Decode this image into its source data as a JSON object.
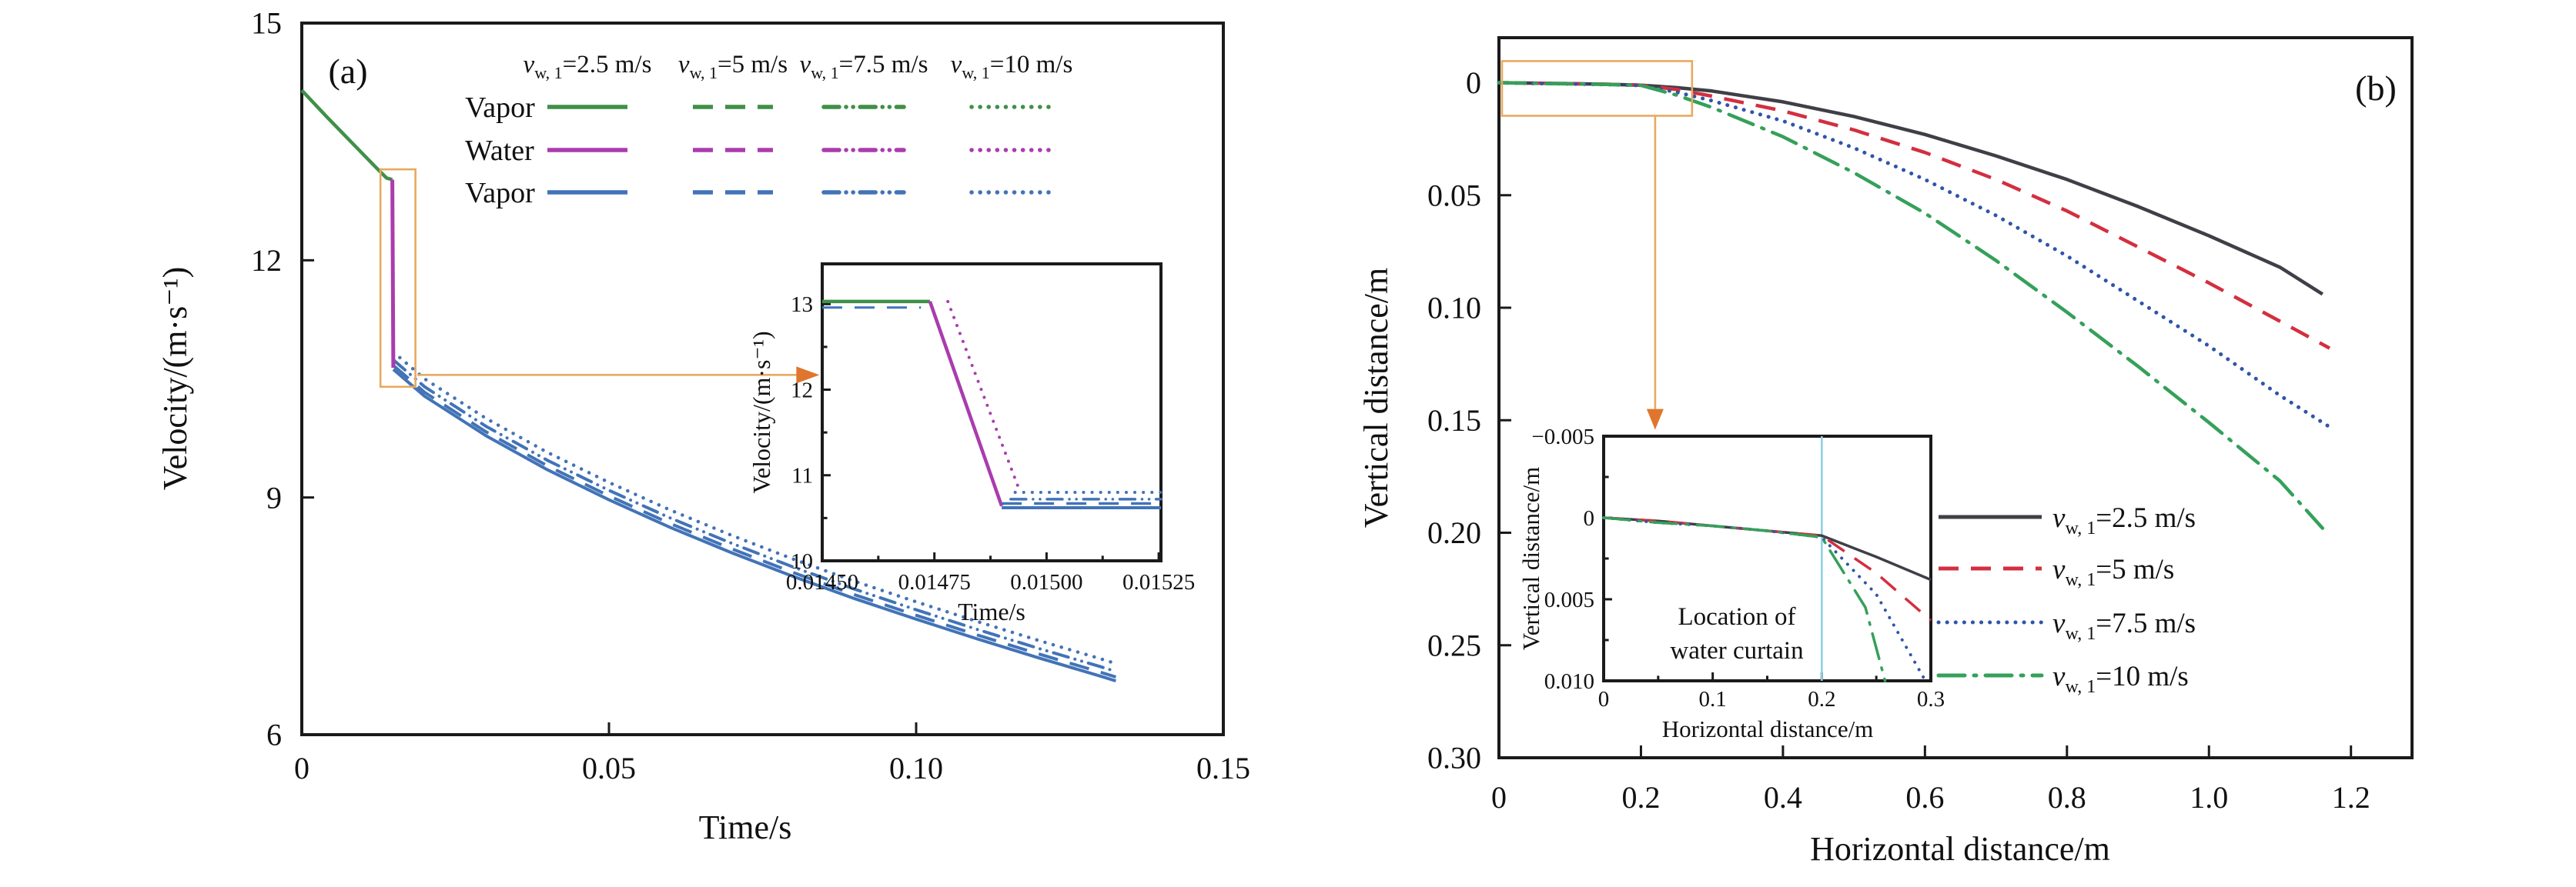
{
  "figure": {
    "background": "#ffffff",
    "panel_a_label": "(a)",
    "panel_b_label": "(b)"
  },
  "colors": {
    "annotation_orange": "#e8a95f",
    "arrow_orange": "#e0762e",
    "water_curtain_marker": "#8fd0e4",
    "vapor_initial_green": "#3f9048",
    "water_magenta": "#aa3cad",
    "vapor_cooled_blue": "#4273b7",
    "traj_black": "#3f3f47",
    "traj_red": "#d32f3f",
    "traj_blue": "#2f55a8",
    "traj_green": "#35a05a"
  },
  "chart_data": [
    {
      "id": "a",
      "type": "line",
      "panel_label": "(a)",
      "xlabel": "Time/s",
      "ylabel": "Velocity/(m·s⁻¹)",
      "xlim": [
        0,
        0.15
      ],
      "ylim": [
        6,
        15
      ],
      "grid": false,
      "xticks": {
        "values": [
          0,
          0.05,
          0.1,
          0.15
        ],
        "labels": [
          "0",
          "0.05",
          "0.10",
          "0.15"
        ]
      },
      "yticks": {
        "values": [
          6,
          9,
          12,
          15
        ],
        "labels": [
          "6",
          "9",
          "12",
          "15"
        ]
      },
      "legend": {
        "position": "top-inside",
        "row_labels": [
          "Vapor",
          "Water",
          "Vapor"
        ],
        "row_colors": [
          "#3f9048",
          "#aa3cad",
          "#4273b7"
        ],
        "columns": [
          {
            "var": "v",
            "sub": "w, 1",
            "rest": "=2.5 m/s",
            "style": "solid"
          },
          {
            "var": "v",
            "sub": "w, 1",
            "rest": "=5 m/s",
            "style": "dashed"
          },
          {
            "var": "v",
            "sub": "w, 1",
            "rest": "=7.5 m/s",
            "style": "dashdotdot"
          },
          {
            "var": "v",
            "sub": "w, 1",
            "rest": "=10 m/s",
            "style": "dotted"
          }
        ]
      },
      "vapor_cooled_base": [
        [
          0.0149,
          10.62
        ],
        [
          0.02,
          10.28
        ],
        [
          0.03,
          9.78
        ],
        [
          0.04,
          9.35
        ],
        [
          0.05,
          8.97
        ],
        [
          0.06,
          8.62
        ],
        [
          0.07,
          8.3
        ],
        [
          0.08,
          8.0
        ],
        [
          0.09,
          7.72
        ],
        [
          0.1,
          7.46
        ],
        [
          0.11,
          7.21
        ],
        [
          0.12,
          6.97
        ],
        [
          0.13,
          6.74
        ],
        [
          0.1325,
          6.68
        ]
      ],
      "series": [
        {
          "name": "vapor-cooled-10",
          "color": "#4273b7",
          "style": "dotted",
          "width": 4.5,
          "use_base": true,
          "dy": 0.22
        },
        {
          "name": "vapor-cooled-7.5",
          "color": "#4273b7",
          "style": "dashdotdot",
          "width": 4,
          "use_base": true,
          "dy": 0.12
        },
        {
          "name": "vapor-cooled-5",
          "color": "#4273b7",
          "style": "dashed",
          "width": 4,
          "use_base": true,
          "dy": 0.05
        },
        {
          "name": "vapor-cooled-2.5",
          "color": "#4273b7",
          "style": "solid",
          "width": 4,
          "use_base": true,
          "dy": 0
        },
        {
          "name": "vapor-initial",
          "color": "#3f9048",
          "style": "solid",
          "width": 4.5,
          "points": [
            [
              0,
              14.15
            ],
            [
              0.004,
              13.82
            ],
            [
              0.008,
              13.5
            ],
            [
              0.012,
              13.18
            ],
            [
              0.0138,
              13.04
            ],
            [
              0.01474,
              13.02
            ]
          ]
        },
        {
          "name": "water-curtain-drop",
          "color": "#aa3cad",
          "style": "solid",
          "width": 5,
          "points": [
            [
              0.01474,
              13.02
            ],
            [
              0.0149,
              10.64
            ]
          ]
        }
      ],
      "annotation_box": {
        "x0": 0.0128,
        "x1": 0.0185,
        "y0": 10.4,
        "y1": 13.15
      },
      "connector": {
        "type": "h",
        "y": 10.55,
        "x_from": 0.0188,
        "x_to": 0.0805
      },
      "inset": {
        "xlabel": "Time/s",
        "ylabel": "Velocity/(m·s⁻¹)",
        "xlim": [
          0.0145,
          0.015255
        ],
        "ylim": [
          10,
          13.47
        ],
        "xticks": {
          "values": [
            0.0145,
            0.01475,
            0.015,
            0.01525
          ],
          "labels": [
            "0.01450",
            "0.01475",
            "0.01500",
            "0.01525"
          ]
        },
        "yticks": {
          "values": [
            10,
            11,
            12,
            13
          ],
          "labels": [
            "10",
            "11",
            "12",
            "13"
          ]
        },
        "minor_xticks": [
          0.014625,
          0.014875,
          0.015125
        ],
        "minor_yticks": [
          10.5,
          11.5,
          12.5
        ],
        "series": [
          {
            "name": "inset-vapor-initial-dashed",
            "color": "#4273b7",
            "style": "dashed",
            "width": 3,
            "points": [
              [
                0.0145,
                12.96
              ],
              [
                0.01472,
                12.96
              ]
            ]
          },
          {
            "name": "inset-vapor-initial",
            "color": "#3f9048",
            "style": "solid",
            "width": 4.5,
            "points": [
              [
                0.0145,
                13.03
              ],
              [
                0.01474,
                13.03
              ]
            ]
          },
          {
            "name": "inset-water-drop-dotted",
            "color": "#aa3cad",
            "style": "dotted",
            "width": 4,
            "points": [
              [
                0.01478,
                13.03
              ],
              [
                0.01494,
                10.82
              ]
            ]
          },
          {
            "name": "inset-water-drop",
            "color": "#aa3cad",
            "style": "solid",
            "width": 4.5,
            "points": [
              [
                0.01474,
                13.03
              ],
              [
                0.0149,
                10.64
              ]
            ]
          },
          {
            "name": "inset-cooled-dotted",
            "color": "#4273b7",
            "style": "dotted",
            "width": 4,
            "points": [
              [
                0.01493,
                10.8
              ],
              [
                0.015255,
                10.8
              ]
            ]
          },
          {
            "name": "inset-cooled-dashdotdot",
            "color": "#4273b7",
            "style": "dashdotdot",
            "width": 3.5,
            "points": [
              [
                0.01492,
                10.72
              ],
              [
                0.015255,
                10.72
              ]
            ]
          },
          {
            "name": "inset-cooled-dashed",
            "color": "#4273b7",
            "style": "dashed",
            "width": 3.5,
            "points": [
              [
                0.0149,
                10.67
              ],
              [
                0.015255,
                10.67
              ]
            ]
          },
          {
            "name": "inset-cooled-solid",
            "color": "#4273b7",
            "style": "solid",
            "width": 4,
            "points": [
              [
                0.0149,
                10.62
              ],
              [
                0.015255,
                10.62
              ]
            ]
          }
        ]
      }
    },
    {
      "id": "b",
      "type": "line",
      "panel_label": "(b)",
      "xlabel": "Horizontal distance/m",
      "ylabel": "Vertical distance/m",
      "xlim": [
        0,
        1.286
      ],
      "ylim": [
        -0.02,
        0.3
      ],
      "y_inverted": true,
      "grid": false,
      "xticks": {
        "values": [
          0,
          0.2,
          0.4,
          0.6,
          0.8,
          1.0,
          1.2
        ],
        "labels": [
          "0",
          "0.2",
          "0.4",
          "0.6",
          "0.8",
          "1.0",
          "1.2"
        ]
      },
      "yticks": {
        "values": [
          0,
          0.05,
          0.1,
          0.15,
          0.2,
          0.25,
          0.3
        ],
        "labels": [
          "0",
          "0.05",
          "0.10",
          "0.15",
          "0.20",
          "0.25",
          "0.30"
        ]
      },
      "legend": {
        "position": "right-inside",
        "entries": [
          {
            "var": "v",
            "sub": "w, 1",
            "rest": "=2.5 m/s",
            "color": "#3f3f47",
            "style": "solid"
          },
          {
            "var": "v",
            "sub": "w, 1",
            "rest": "=5 m/s",
            "color": "#d32f3f",
            "style": "dashed"
          },
          {
            "var": "v",
            "sub": "w, 1",
            "rest": "=7.5 m/s",
            "color": "#2f55a8",
            "style": "dotted"
          },
          {
            "var": "v",
            "sub": "w, 1",
            "rest": "=10 m/s",
            "color": "#35a05a",
            "style": "dashdot"
          }
        ]
      },
      "series": [
        {
          "name": "trajectory-2.5",
          "color": "#3f3f47",
          "style": "solid",
          "width": 4.5,
          "points": [
            [
              0,
              0
            ],
            [
              0.05,
              0.0002
            ],
            [
              0.1,
              0.0004
            ],
            [
              0.15,
              0.0007
            ],
            [
              0.2,
              0.0011
            ],
            [
              0.25,
              0.0022
            ],
            [
              0.3,
              0.0037
            ],
            [
              0.4,
              0.0085
            ],
            [
              0.5,
              0.015
            ],
            [
              0.6,
              0.023
            ],
            [
              0.7,
              0.0325
            ],
            [
              0.8,
              0.043
            ],
            [
              0.9,
              0.055
            ],
            [
              1.0,
              0.068
            ],
            [
              1.1,
              0.082
            ],
            [
              1.16,
              0.094
            ]
          ]
        },
        {
          "name": "trajectory-5",
          "color": "#d32f3f",
          "style": "dashed",
          "width": 4.5,
          "points": [
            [
              0,
              0
            ],
            [
              0.05,
              0.0002
            ],
            [
              0.1,
              0.0004
            ],
            [
              0.15,
              0.0007
            ],
            [
              0.2,
              0.0011
            ],
            [
              0.25,
              0.003
            ],
            [
              0.3,
              0.006
            ],
            [
              0.4,
              0.0125
            ],
            [
              0.5,
              0.021
            ],
            [
              0.6,
              0.031
            ],
            [
              0.7,
              0.043
            ],
            [
              0.8,
              0.057
            ],
            [
              0.9,
              0.073
            ],
            [
              1.0,
              0.089
            ],
            [
              1.1,
              0.106
            ],
            [
              1.17,
              0.118
            ]
          ]
        },
        {
          "name": "trajectory-7.5",
          "color": "#2f55a8",
          "style": "dotted",
          "width": 5,
          "points": [
            [
              0,
              0
            ],
            [
              0.05,
              0.0003
            ],
            [
              0.1,
              0.0005
            ],
            [
              0.15,
              0.0008
            ],
            [
              0.2,
              0.0012
            ],
            [
              0.25,
              0.0042
            ],
            [
              0.3,
              0.008
            ],
            [
              0.4,
              0.017
            ],
            [
              0.5,
              0.029
            ],
            [
              0.6,
              0.043
            ],
            [
              0.7,
              0.059
            ],
            [
              0.8,
              0.077
            ],
            [
              0.9,
              0.097
            ],
            [
              1.0,
              0.117
            ],
            [
              1.1,
              0.139
            ],
            [
              1.17,
              0.153
            ]
          ]
        },
        {
          "name": "trajectory-10",
          "color": "#35a05a",
          "style": "dashdot",
          "width": 4.5,
          "points": [
            [
              0,
              0
            ],
            [
              0.05,
              0.0003
            ],
            [
              0.1,
              0.0005
            ],
            [
              0.15,
              0.0008
            ],
            [
              0.2,
              0.0012
            ],
            [
              0.25,
              0.0055
            ],
            [
              0.3,
              0.011
            ],
            [
              0.4,
              0.024
            ],
            [
              0.5,
              0.04
            ],
            [
              0.6,
              0.058
            ],
            [
              0.7,
              0.079
            ],
            [
              0.8,
              0.102
            ],
            [
              0.9,
              0.126
            ],
            [
              1.0,
              0.151
            ],
            [
              1.1,
              0.177
            ],
            [
              1.16,
              0.198
            ]
          ]
        }
      ],
      "annotation_box": {
        "x0": 0.0043,
        "x1": 0.272,
        "y0": -0.0096,
        "y1": 0.0147
      },
      "connector": {
        "type": "v",
        "x": 0.22,
        "y_from": 0.0147,
        "y_to": 0.145
      },
      "inset": {
        "xlabel": "Horizontal distance/m",
        "ylabel": "Vertical distance/m",
        "xlim": [
          0,
          0.3
        ],
        "ylim": [
          -0.005,
          0.01
        ],
        "y_inverted": true,
        "xticks": {
          "values": [
            0,
            0.1,
            0.2,
            0.3
          ],
          "labels": [
            "0",
            "0.1",
            "0.2",
            "0.3"
          ]
        },
        "yticks": {
          "values": [
            -0.005,
            0,
            0.005,
            0.01
          ],
          "labels": [
            "−0.005",
            "0",
            "0.005",
            "0.010"
          ]
        },
        "minor_xticks": [
          0.05,
          0.15,
          0.25
        ],
        "minor_yticks": [
          -0.0025,
          0.0025,
          0.0075
        ],
        "marker_line": {
          "x": 0.2,
          "color": "#8fd0e4",
          "label_lines": [
            "Location of",
            "water curtain"
          ]
        },
        "series": [
          {
            "name": "inset-trajectory-2.5",
            "color": "#3f3f47",
            "style": "solid",
            "width": 3.5,
            "points": [
              [
                0,
                0
              ],
              [
                0.05,
                0.0002
              ],
              [
                0.1,
                0.0005
              ],
              [
                0.15,
                0.0008
              ],
              [
                0.2,
                0.0011
              ],
              [
                0.25,
                0.0024
              ],
              [
                0.3,
                0.0038
              ]
            ]
          },
          {
            "name": "inset-trajectory-5",
            "color": "#d32f3f",
            "style": "dashed",
            "width": 3.5,
            "points": [
              [
                0,
                0
              ],
              [
                0.05,
                0.0002
              ],
              [
                0.1,
                0.0005
              ],
              [
                0.15,
                0.0008
              ],
              [
                0.2,
                0.0011
              ],
              [
                0.25,
                0.0034
              ],
              [
                0.3,
                0.0063
              ]
            ]
          },
          {
            "name": "inset-trajectory-7.5",
            "color": "#2f55a8",
            "style": "dotted",
            "width": 4,
            "points": [
              [
                0,
                0
              ],
              [
                0.05,
                0.0003
              ],
              [
                0.1,
                0.0005
              ],
              [
                0.15,
                0.0008
              ],
              [
                0.2,
                0.0012
              ],
              [
                0.25,
                0.0047
              ],
              [
                0.295,
                0.01
              ]
            ]
          },
          {
            "name": "inset-trajectory-10",
            "color": "#35a05a",
            "style": "dashdot",
            "width": 3.5,
            "points": [
              [
                0,
                0
              ],
              [
                0.05,
                0.0003
              ],
              [
                0.1,
                0.0005
              ],
              [
                0.15,
                0.0008
              ],
              [
                0.2,
                0.0012
              ],
              [
                0.24,
                0.0055
              ],
              [
                0.258,
                0.01
              ]
            ]
          }
        ]
      }
    }
  ]
}
